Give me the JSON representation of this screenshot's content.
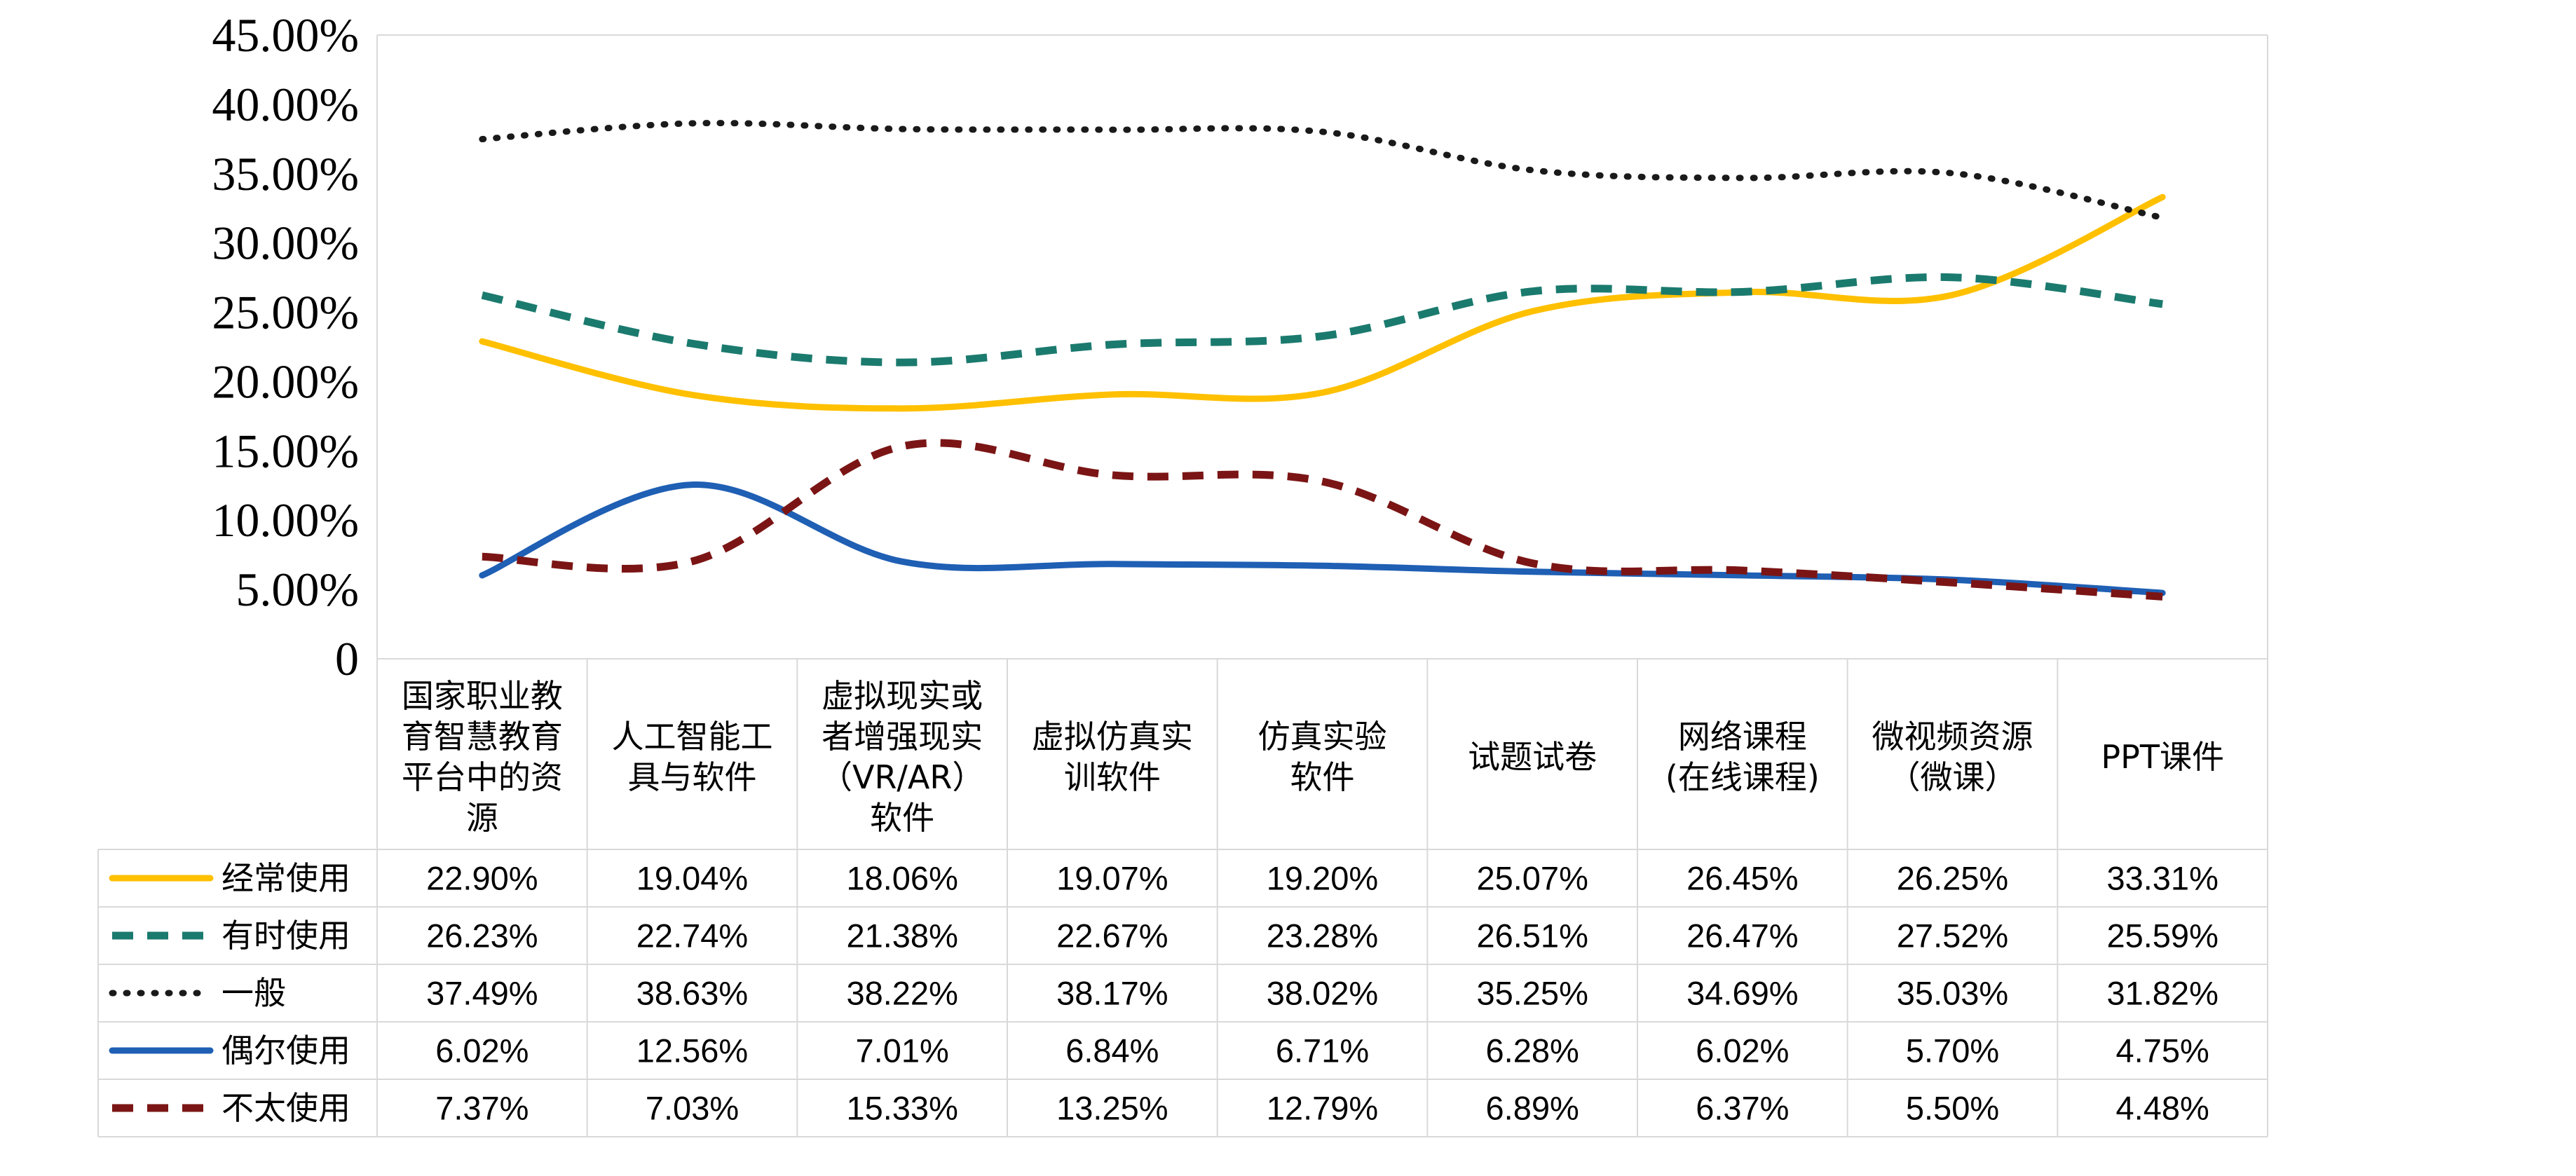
{
  "chart_data": {
    "type": "line",
    "ylim": [
      0,
      45
    ],
    "yticks": [
      "0",
      "5.00%",
      "10.00%",
      "15.00%",
      "20.00%",
      "25.00%",
      "30.00%",
      "35.00%",
      "40.00%",
      "45.00%"
    ],
    "categories": [
      "国家职业教育智慧教育平台中的资源",
      "人工智能工具与软件",
      "虚拟现实或者增强现实（VR/AR）软件",
      "虚拟仿真实训软件",
      "仿真实验软件",
      "试题试卷",
      "网络课程（在线课程）",
      "微视频资源（微课）",
      "PPT课件"
    ],
    "category_label_lines": [
      [
        "国家职业教",
        "育智慧教育",
        "平台中的资",
        "源"
      ],
      [
        "人工智能工",
        "具与软件"
      ],
      [
        "虚拟现实或",
        "者增强现实",
        "（VR/AR）",
        "软件"
      ],
      [
        "虚拟仿真实",
        "训软件"
      ],
      [
        "仿真实验",
        "软件"
      ],
      [
        "试题试卷"
      ],
      [
        "网络课程",
        "(在线课程)"
      ],
      [
        "微视频资源",
        "（微课）"
      ],
      [
        "PPT课件"
      ]
    ],
    "series": [
      {
        "name": "经常使用",
        "color": "#FFC000",
        "dash": "solid",
        "values": [
          22.9,
          19.04,
          18.06,
          19.07,
          19.2,
          25.07,
          26.45,
          26.25,
          33.31
        ],
        "labels": [
          "22.90%",
          "19.04%",
          "18.06%",
          "19.07%",
          "19.20%",
          "25.07%",
          "26.45%",
          "26.25%",
          "33.31%"
        ]
      },
      {
        "name": "有时使用",
        "color": "#1B7A6E",
        "dash": "dash",
        "values": [
          26.23,
          22.74,
          21.38,
          22.67,
          23.28,
          26.51,
          26.47,
          27.52,
          25.59
        ],
        "labels": [
          "26.23%",
          "22.74%",
          "21.38%",
          "22.67%",
          "23.28%",
          "26.51%",
          "26.47%",
          "27.52%",
          "25.59%"
        ]
      },
      {
        "name": "一般",
        "color": "#1a1a1a",
        "dash": "dot",
        "values": [
          37.49,
          38.63,
          38.22,
          38.17,
          38.02,
          35.25,
          34.69,
          35.03,
          31.82
        ],
        "labels": [
          "37.49%",
          "38.63%",
          "38.22%",
          "38.17%",
          "38.02%",
          "35.25%",
          "34.69%",
          "35.03%",
          "31.82%"
        ]
      },
      {
        "name": "偶尔使用",
        "color": "#1F5FB4",
        "dash": "solid",
        "values": [
          6.02,
          12.56,
          7.01,
          6.84,
          6.71,
          6.28,
          6.02,
          5.7,
          4.75
        ],
        "labels": [
          "6.02%",
          "12.56%",
          "7.01%",
          "6.84%",
          "6.71%",
          "6.28%",
          "6.02%",
          "5.70%",
          "4.75%"
        ]
      },
      {
        "name": "不太使用",
        "color": "#7B1515",
        "dash": "dash",
        "values": [
          7.37,
          7.03,
          15.33,
          13.25,
          12.79,
          6.89,
          6.37,
          5.5,
          4.48
        ],
        "labels": [
          "7.37%",
          "7.03%",
          "15.33%",
          "13.25%",
          "12.79%",
          "6.89%",
          "6.37%",
          "5.50%",
          "4.48%"
        ]
      }
    ]
  }
}
